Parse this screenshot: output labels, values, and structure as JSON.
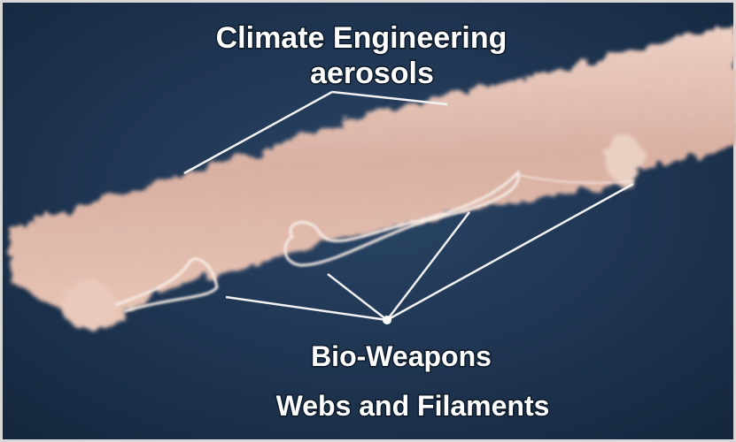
{
  "labels": {
    "top": [
      "Climate Engineering",
      "aerosols"
    ],
    "bottom": [
      "Bio-Weapons",
      "Webs and Filaments"
    ]
  }
}
